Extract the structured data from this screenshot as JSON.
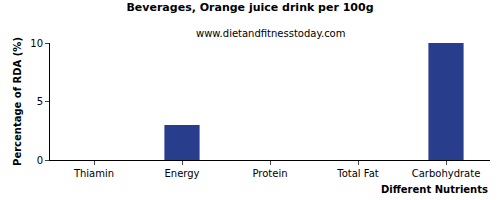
{
  "chart_data": {
    "type": "bar",
    "title": "Beverages, Orange juice drink per 100g",
    "subtitle": "www.dietandfitnesstoday.com",
    "x_label": "Different Nutrients",
    "y_label": "Percentage of RDA (%)",
    "categories": [
      "Thiamin",
      "Energy",
      "Protein",
      "Total Fat",
      "Carbohydrate"
    ],
    "values": [
      0,
      3,
      0,
      0,
      10
    ],
    "color": "#283e8c",
    "ylim": [
      0,
      10
    ],
    "yticks": [
      0,
      5,
      10
    ],
    "grid": false
  }
}
